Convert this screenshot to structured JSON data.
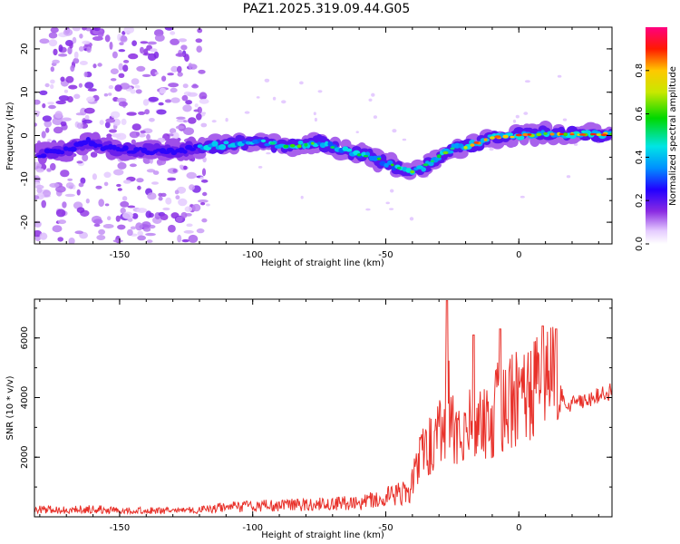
{
  "chart_data": [
    {
      "type": "heatmap",
      "title": "PAZ1.2025.319.09.44.G05",
      "xlabel": "Height of straight line (km)",
      "ylabel": "Frequency (Hz)",
      "xlim": [
        -182,
        35
      ],
      "ylim": [
        -25,
        25
      ],
      "xticks": [
        -150,
        -100,
        -50,
        0
      ],
      "xtick_labels": [
        "-150",
        "-100",
        "-50",
        "0"
      ],
      "yticks": [
        -20,
        -10,
        0,
        10,
        20
      ],
      "ytick_labels": [
        "-20",
        "-10",
        "0",
        "10",
        "20"
      ],
      "colorbar": {
        "label": "Normalized spectral amplitude",
        "range": [
          0,
          1
        ],
        "ticks": [
          0.0,
          0.2,
          0.4,
          0.6,
          0.8
        ],
        "tick_labels": [
          "0.0",
          "0.2",
          "0.4",
          "0.6",
          "0.8"
        ]
      },
      "ridge": {
        "height_km": [
          -182,
          -170,
          -162,
          -150,
          -130,
          -115,
          -100,
          -85,
          -75,
          -65,
          -55,
          -45,
          -40,
          -35,
          -30,
          -25,
          -20,
          -15,
          -10,
          0,
          10,
          20,
          35
        ],
        "frequency_hz": [
          -4.5,
          -3.5,
          -1.5,
          -3.5,
          -3.5,
          -2.5,
          -1.5,
          -2.5,
          -1.5,
          -3.5,
          -5.0,
          -7.5,
          -8.5,
          -7.0,
          -5.0,
          -3.0,
          -2.5,
          -1.5,
          -0.5,
          0.0,
          0.5,
          0.3,
          0.3
        ]
      },
      "noise_region_km": [
        -182,
        -120
      ]
    },
    {
      "type": "line",
      "xlabel": "Height of straight line (km)",
      "ylabel": "SNR (10 * v/v)",
      "xlim": [
        -182,
        35
      ],
      "ylim": [
        0,
        7300
      ],
      "xticks": [
        -150,
        -100,
        -50,
        0
      ],
      "xtick_labels": [
        "-150",
        "-100",
        "-50",
        "0"
      ],
      "yticks": [
        2000,
        4000,
        6000
      ],
      "ytick_labels": [
        "2000",
        "4000",
        "6000"
      ],
      "series": [
        {
          "name": "SNR",
          "color": "#e8312a",
          "x": [
            -182,
            -170,
            -160,
            -150,
            -140,
            -130,
            -120,
            -115,
            -110,
            -100,
            -90,
            -80,
            -70,
            -60,
            -55,
            -50,
            -45,
            -42,
            -40,
            -38,
            -35,
            -32,
            -30,
            -28,
            -26,
            -25,
            -22,
            -20,
            -18,
            -15,
            -12,
            -10,
            -8,
            -5,
            -2,
            0,
            2,
            5,
            8,
            10,
            12,
            14,
            15,
            16,
            18,
            20,
            25,
            30,
            35
          ],
          "values": [
            250,
            230,
            260,
            210,
            220,
            200,
            230,
            260,
            330,
            360,
            380,
            400,
            430,
            480,
            560,
            650,
            750,
            900,
            1200,
            1800,
            2300,
            2500,
            2800,
            3000,
            3800,
            2900,
            3000,
            3500,
            3300,
            3000,
            3400,
            3200,
            3700,
            3800,
            4000,
            3900,
            4000,
            4200,
            4500,
            4400,
            4800,
            4600,
            5000,
            4100,
            3700,
            3800,
            3900,
            4100,
            4200
          ]
        }
      ],
      "peaks": [
        {
          "x": -27,
          "y": 7250
        },
        {
          "x": -17,
          "y": 6100
        },
        {
          "x": -7,
          "y": 6300
        },
        {
          "x": 9,
          "y": 6400
        },
        {
          "x": 14,
          "y": 6300
        }
      ]
    }
  ]
}
